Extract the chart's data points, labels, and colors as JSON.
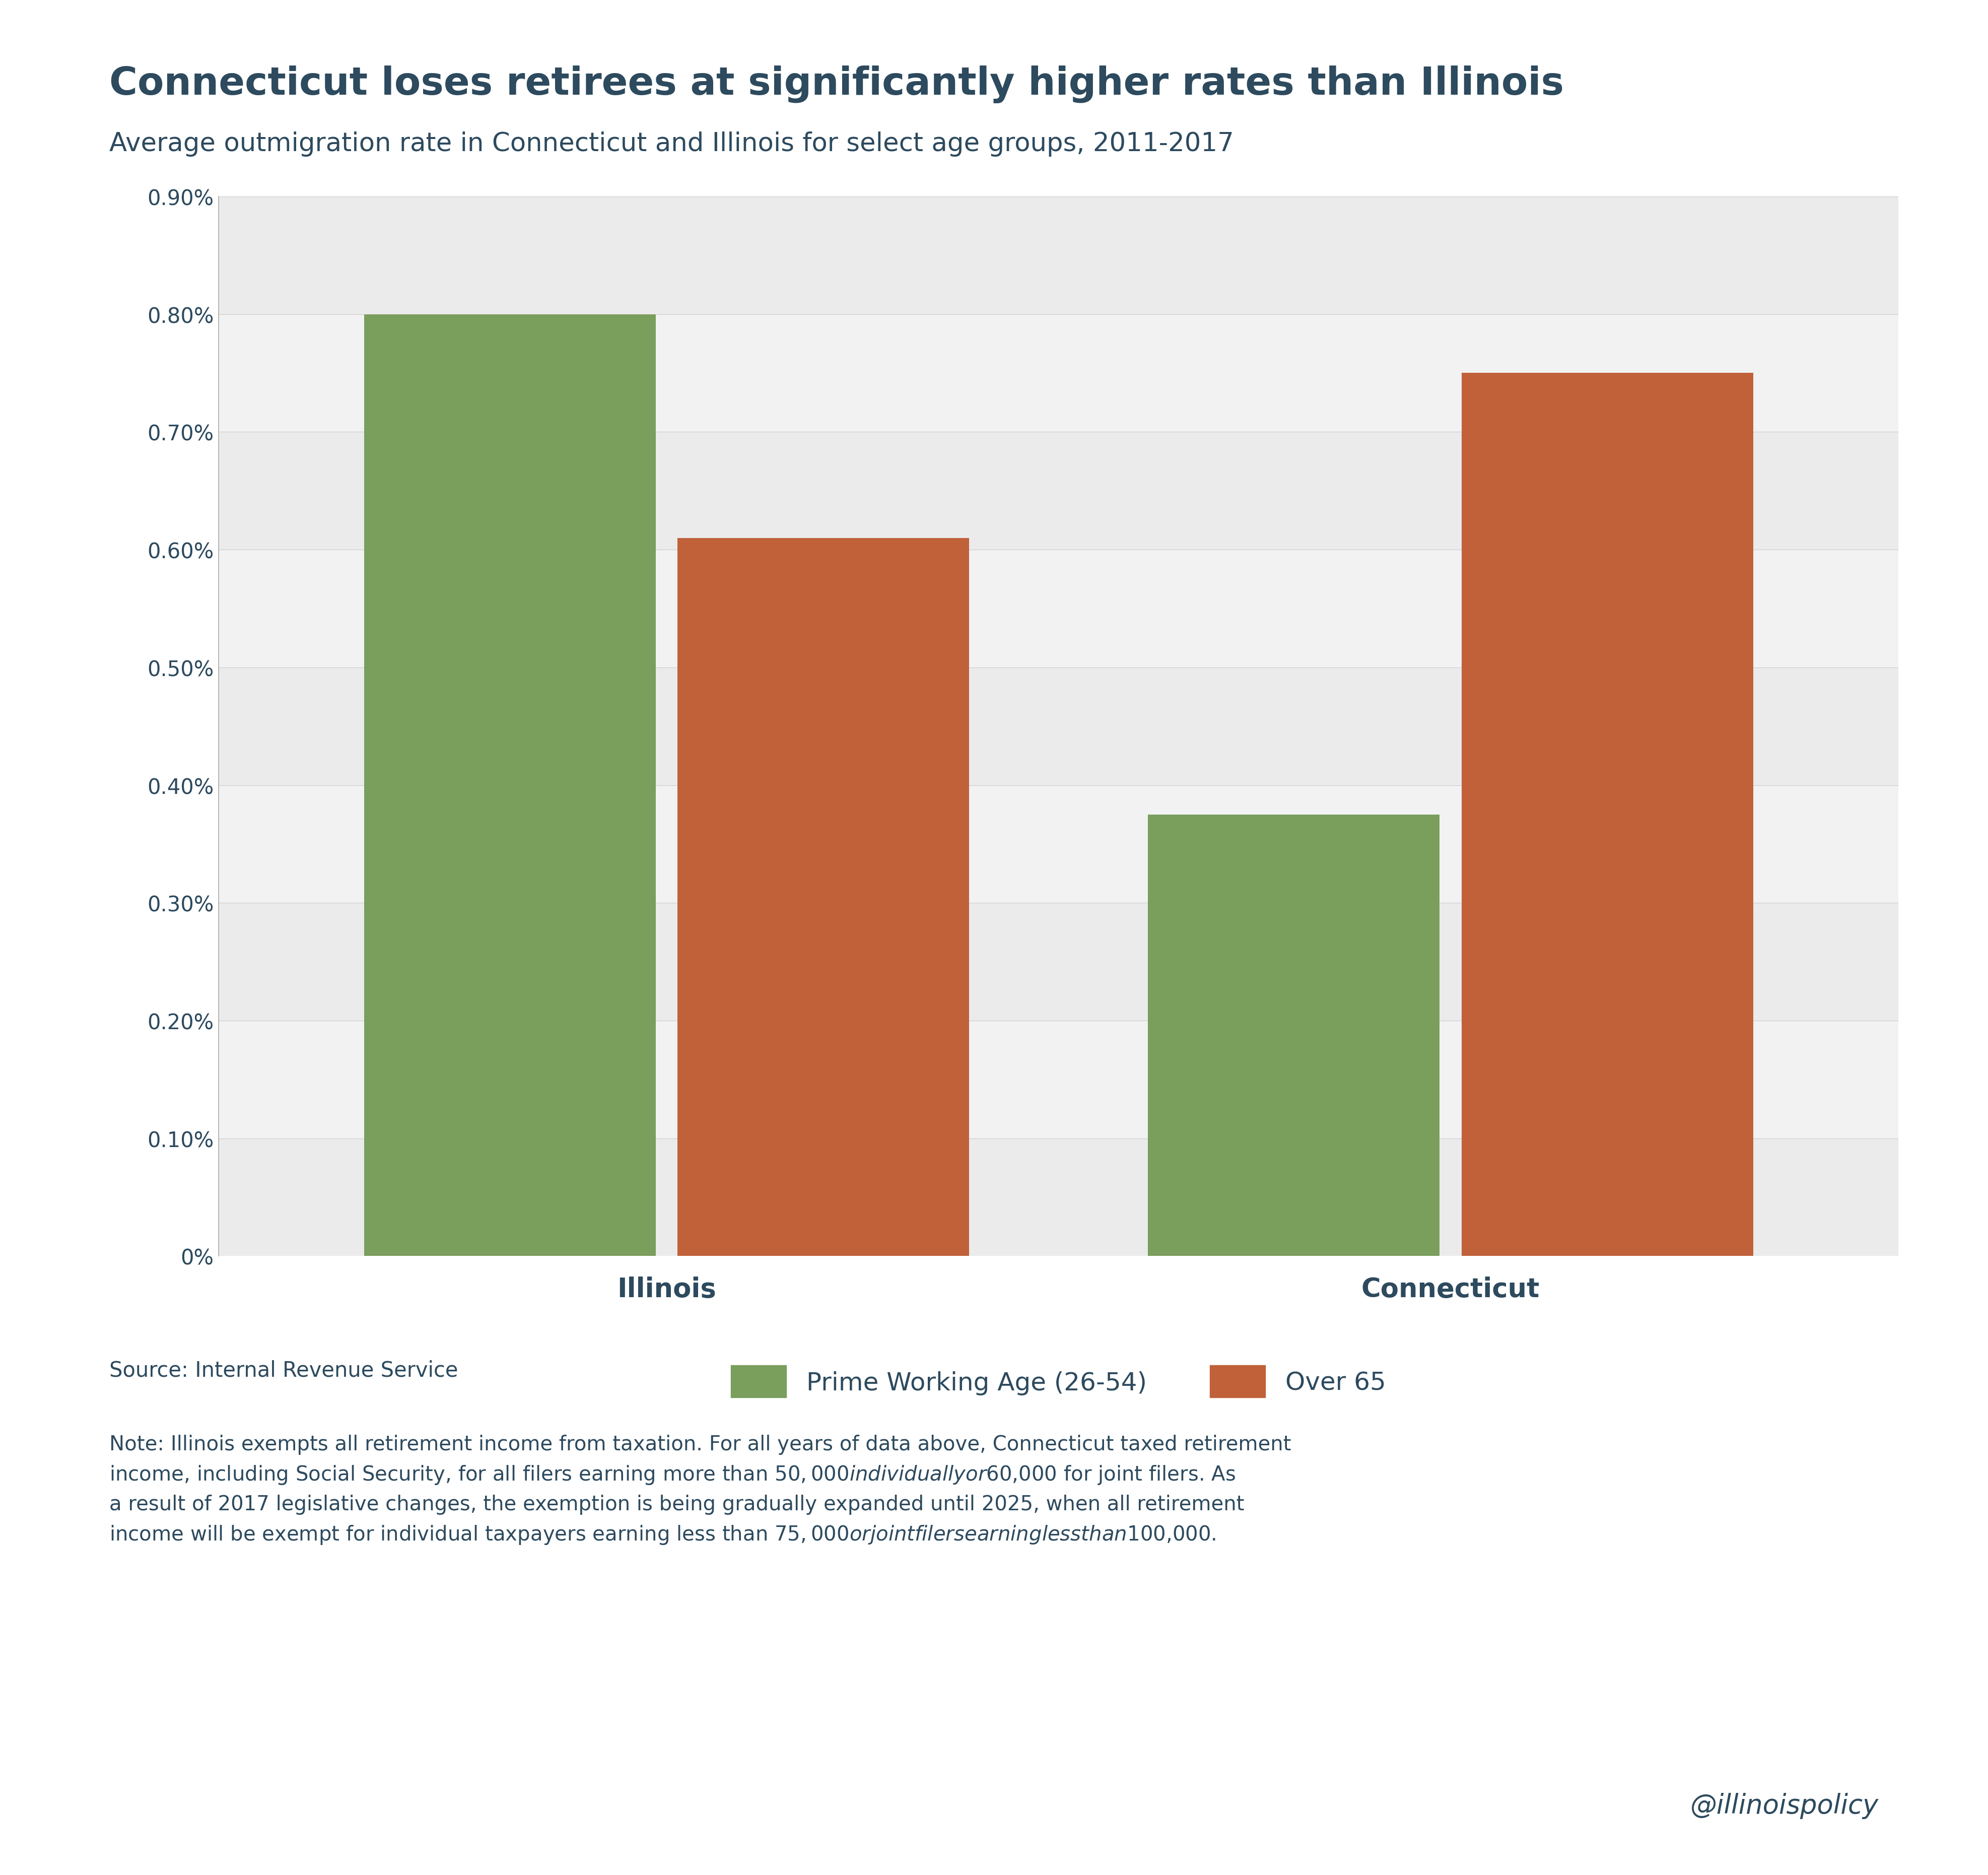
{
  "title": "Connecticut loses retirees at significantly higher rates than Illinois",
  "subtitle": "Average outmigration rate in Connecticut and Illinois for select age groups, 2011-2017",
  "groups": [
    "Illinois",
    "Connecticut"
  ],
  "categories": [
    "Prime Working Age (26-54)",
    "Over 65"
  ],
  "values": {
    "Illinois": [
      0.008,
      0.0061
    ],
    "Connecticut": [
      0.00375,
      0.0075
    ]
  },
  "bar_colors": [
    "#7a9e5c",
    "#c0613a"
  ],
  "legend_labels": [
    "Prime Working Age (26-54)",
    "Over 65"
  ],
  "ylim": [
    0,
    0.009
  ],
  "ytick_labels": [
    "0%",
    "0.10%",
    "0.20%",
    "0.30%",
    "0.40%",
    "0.50%",
    "0.60%",
    "0.70%",
    "0.80%",
    "0.90%"
  ],
  "text_color": "#2d4a5e",
  "source_text": "Source: Internal Revenue Service",
  "note_text": "Note: Illinois exempts all retirement income from taxation. For all years of data above, Connecticut taxed retirement\nincome, including Social Security, for all filers earning more than $50,000 individually or $60,000 for joint filers. As\na result of 2017 legislative changes, the exemption is being gradually expanded until 2025, when all retirement\nincome will be exempt for individual taxpayers earning less than $75,000 or joint filers earning less than $100,000.",
  "watermark": "@illinoispolicy",
  "background_color": "#ffffff",
  "band_colors": [
    "#ebebeb",
    "#f2f2f2"
  ],
  "bar_width": 0.28,
  "x_positions": [
    0.3,
    1.0
  ]
}
